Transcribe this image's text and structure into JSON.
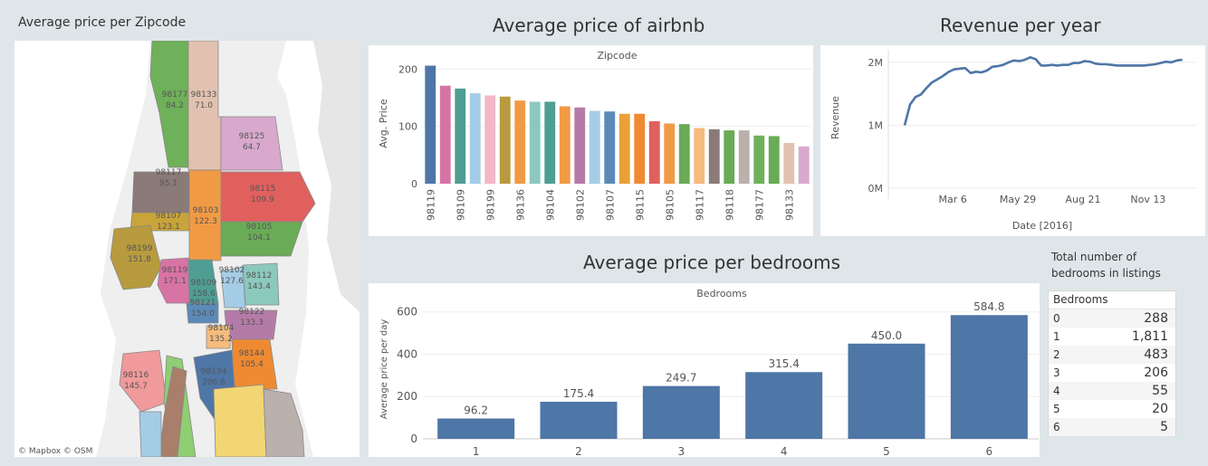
{
  "map": {
    "title": "Average price  per Zipcode",
    "attribution": "© Mapbox  © OSM",
    "regions": [
      {
        "zip": "98177",
        "price": "84.2",
        "color": "#6fb05a"
      },
      {
        "zip": "98133",
        "price": "71.0",
        "color": "#e2c1b0"
      },
      {
        "zip": "98125",
        "price": "64.7",
        "color": "#d9a9cd"
      },
      {
        "zip": "98117",
        "price": "95.1",
        "color": "#8a7a78"
      },
      {
        "zip": "98115",
        "price": "109.9",
        "color": "#e0605e"
      },
      {
        "zip": "98103",
        "price": "122.3",
        "color": "#f19a45"
      },
      {
        "zip": "98107",
        "price": "123.1",
        "color": "#c9a43a"
      },
      {
        "zip": "98105",
        "price": "104.1",
        "color": "#69ab56"
      },
      {
        "zip": "98199",
        "price": "151.8",
        "color": "#b89b3e"
      },
      {
        "zip": "98119",
        "price": "171.1",
        "color": "#d873a5"
      },
      {
        "zip": "98109",
        "price": "158.6",
        "color": "#4f9e94"
      },
      {
        "zip": "98102",
        "price": "127.6",
        "color": "#a5cce6"
      },
      {
        "zip": "98112",
        "price": "143.4",
        "color": "#8cc9bd"
      },
      {
        "zip": "98121",
        "price": "154.0",
        "color": "#5b8ab7"
      },
      {
        "zip": "98122",
        "price": "133.3",
        "color": "#b57ba8"
      },
      {
        "zip": "98104",
        "price": "135.2",
        "color": "#f6bb7d"
      },
      {
        "zip": "98144",
        "price": "105.4",
        "color": "#ef8a32"
      },
      {
        "zip": "98134",
        "price": "206.6",
        "color": "#4e76a6"
      },
      {
        "zip": "98116",
        "price": "145.7",
        "color": "#f09a9b"
      }
    ]
  },
  "titles": {
    "zip_chart": "Average price of airbnb",
    "revenue_chart": "Revenue per year",
    "bedrooms_chart": "Average price per bedrooms",
    "table": [
      "Total number of",
      "bedrooms in listings"
    ]
  },
  "chart_data": [
    {
      "type": "bar",
      "title": "Average price of airbnb",
      "xlabel": "Zipcode",
      "ylabel": "Avg. Price",
      "ylim": [
        0,
        210
      ],
      "yticks": [
        0,
        100,
        200
      ],
      "categories": [
        "98119",
        "",
        "98109",
        "",
        "98199",
        "",
        "98136",
        "",
        "98104",
        "",
        "98102",
        "",
        "98107",
        "",
        "98115",
        "",
        "98105",
        "",
        "98117",
        "",
        "98118",
        "",
        "98177",
        "",
        "98133",
        ""
      ],
      "values": [
        206,
        171,
        166,
        158,
        154,
        152,
        145,
        143,
        143,
        135,
        133,
        127,
        126,
        122,
        122,
        109,
        105,
        104,
        97,
        95,
        93,
        93,
        84,
        83,
        71,
        65
      ],
      "colors": [
        "#4e76a6",
        "#d873a5",
        "#4f9e94",
        "#a5cce6",
        "#f4b6c9",
        "#b89b3e",
        "#f19a45",
        "#8cc9bd",
        "#4f9e94",
        "#f19a45",
        "#b57ba8",
        "#a5cce6",
        "#5b8ab7",
        "#e9a039",
        "#ef8a32",
        "#e0605e",
        "#f19a45",
        "#69ab56",
        "#f6bb7d",
        "#8a7a78",
        "#69ab56",
        "#bab0ac",
        "#6fb05a",
        "#69ab56",
        "#e2c1b0",
        "#d9a9cd"
      ]
    },
    {
      "type": "line",
      "title": "Revenue per year",
      "xlabel": "Date [2016]",
      "ylabel": "Revenue",
      "ylim": [
        0,
        2200000
      ],
      "yticks": [
        {
          "v": 0,
          "label": "0M"
        },
        {
          "v": 1000000,
          "label": "1M"
        },
        {
          "v": 2000000,
          "label": "2M"
        }
      ],
      "xlim": [
        "2016-01-04",
        "2016-12-31"
      ],
      "xticks": [
        {
          "d": "2016-03-06",
          "label": "Mar 6"
        },
        {
          "d": "2016-05-29",
          "label": "May 29"
        },
        {
          "d": "2016-08-21",
          "label": "Aug 21"
        },
        {
          "d": "2016-11-13",
          "label": "Nov 13"
        }
      ],
      "series": [
        {
          "x": [
            "2016-01-04",
            "2016-01-11",
            "2016-01-18",
            "2016-01-25",
            "2016-02-01",
            "2016-02-08",
            "2016-02-15",
            "2016-02-22",
            "2016-03-01",
            "2016-03-08",
            "2016-03-15",
            "2016-03-22",
            "2016-03-29",
            "2016-04-05",
            "2016-04-12",
            "2016-04-19",
            "2016-04-26",
            "2016-05-03",
            "2016-05-10",
            "2016-05-17",
            "2016-05-24",
            "2016-05-31",
            "2016-06-07",
            "2016-06-14",
            "2016-06-21",
            "2016-06-28",
            "2016-07-05",
            "2016-07-12",
            "2016-07-19",
            "2016-07-26",
            "2016-08-02",
            "2016-08-09",
            "2016-08-16",
            "2016-08-23",
            "2016-08-30",
            "2016-09-06",
            "2016-09-13",
            "2016-09-20",
            "2016-09-27",
            "2016-10-04",
            "2016-10-11",
            "2016-10-18",
            "2016-10-25",
            "2016-11-01",
            "2016-11-08",
            "2016-11-15",
            "2016-11-22",
            "2016-11-29",
            "2016-12-06",
            "2016-12-13",
            "2016-12-20",
            "2016-12-27"
          ],
          "values": [
            1000000,
            1330000,
            1450000,
            1490000,
            1590000,
            1680000,
            1730000,
            1780000,
            1850000,
            1890000,
            1900000,
            1910000,
            1830000,
            1850000,
            1840000,
            1870000,
            1930000,
            1940000,
            1960000,
            2000000,
            2030000,
            2020000,
            2040000,
            2080000,
            2050000,
            1950000,
            1950000,
            1960000,
            1950000,
            1960000,
            1960000,
            1990000,
            1990000,
            2020000,
            2010000,
            1980000,
            1970000,
            1970000,
            1960000,
            1950000,
            1950000,
            1950000,
            1950000,
            1950000,
            1950000,
            1960000,
            1970000,
            1990000,
            2010000,
            2000000,
            2030000,
            2040000
          ]
        }
      ]
    },
    {
      "type": "bar",
      "title": "Average price per bedrooms",
      "xlabel": "Bedrooms",
      "ylabel": "Average price per day",
      "ylim": [
        0,
        650
      ],
      "yticks": [
        0,
        200,
        400,
        600
      ],
      "categories": [
        "1",
        "2",
        "3",
        "4",
        "5",
        "6"
      ],
      "values": [
        96.2,
        175.4,
        249.7,
        315.4,
        450.0,
        584.8
      ],
      "labels": [
        "96.2",
        "175.4",
        "249.7",
        "315.4",
        "450.0",
        "584.8"
      ],
      "color": "#4e76a6"
    },
    {
      "type": "table",
      "title": "Total number of bedrooms in listings",
      "columns": [
        "Bedrooms",
        ""
      ],
      "rows": [
        [
          "0",
          "288"
        ],
        [
          "1",
          "1,811"
        ],
        [
          "2",
          "483"
        ],
        [
          "3",
          "206"
        ],
        [
          "4",
          "55"
        ],
        [
          "5",
          "20"
        ],
        [
          "6",
          "5"
        ]
      ]
    }
  ]
}
